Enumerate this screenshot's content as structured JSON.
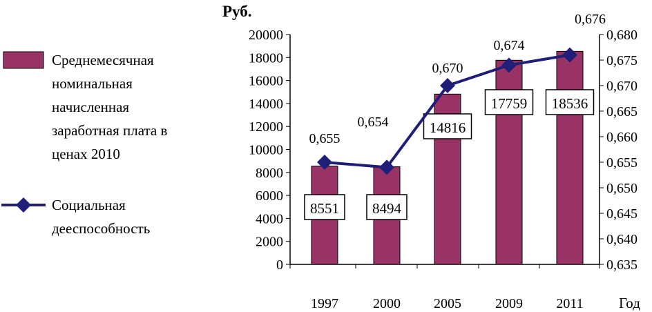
{
  "chart_data": {
    "type": "bar+line",
    "categories": [
      "1997",
      "2000",
      "2005",
      "2009",
      "2011"
    ],
    "series": [
      {
        "name": "Среднемесячная номинальная начисленная заработная плата в ценах 2010",
        "type": "bar",
        "axis": "left",
        "values": [
          8551,
          8494,
          14816,
          17759,
          18536
        ],
        "labels": [
          "8551",
          "8494",
          "14816",
          "17759",
          "18536"
        ],
        "color": "#993366"
      },
      {
        "name": "Социальная дееспособность",
        "type": "line",
        "axis": "right",
        "values": [
          0.655,
          0.654,
          0.67,
          0.674,
          0.676
        ],
        "labels": [
          "0,655",
          "0,654",
          "0,670",
          "0,674",
          "0,676"
        ],
        "color": "#1f1f7a"
      }
    ],
    "ylabel": "Руб.",
    "xlabel": "Год",
    "ylim": [
      0,
      20000
    ],
    "yticks": [
      "0",
      "2000",
      "4000",
      "6000",
      "8000",
      "10000",
      "12000",
      "14000",
      "16000",
      "18000",
      "20000"
    ],
    "y2lim": [
      0.635,
      0.68
    ],
    "y2ticks": [
      "0,635",
      "0,640",
      "0,645",
      "0,650",
      "0,655",
      "0,660",
      "0,665",
      "0,670",
      "0,675",
      "0,680"
    ],
    "legend_position": "left"
  }
}
